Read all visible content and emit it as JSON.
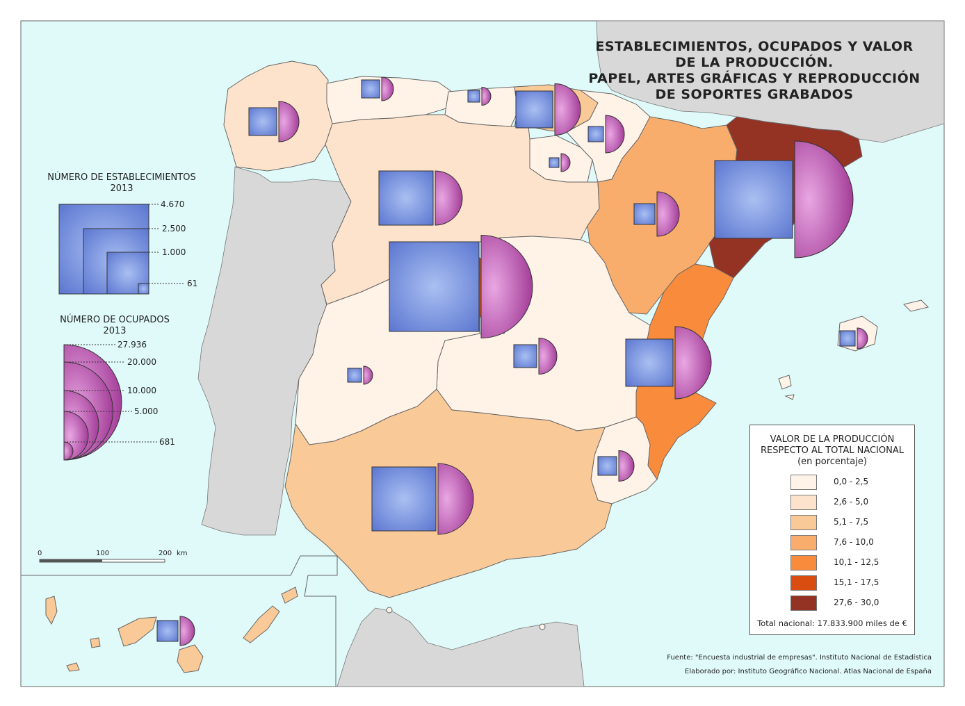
{
  "title": {
    "line1": "ESTABLECIMIENTOS, OCUPADOS Y VALOR",
    "line2": "DE LA PRODUCCIÓN.",
    "line3": "PAPEL, ARTES GRÁFICAS Y REPRODUCCIÓN",
    "line4": "DE SOPORTES GRABADOS"
  },
  "legend_establecimientos": {
    "heading1": "NÚMERO DE ESTABLECIMIENTOS",
    "heading2": "2013",
    "values": [
      "4.670",
      "2.500",
      "1.000",
      "61"
    ]
  },
  "legend_ocupados": {
    "heading1": "NÚMERO DE OCUPADOS",
    "heading2": "2013",
    "values": [
      "27.936",
      "20.000",
      "10.000",
      "5.000",
      "681"
    ]
  },
  "legend_valor": {
    "heading1": "VALOR DE LA PRODUCCIÓN",
    "heading2": "RESPECTO AL TOTAL NACIONAL",
    "heading3": "(en porcentaje)",
    "classes": [
      {
        "label": "0,0 - 2,5",
        "color": "#fff3e8"
      },
      {
        "label": "2,6 - 5,0",
        "color": "#fde3cb"
      },
      {
        "label": "5,1 - 7,5",
        "color": "#fac998"
      },
      {
        "label": "7,6 - 10,0",
        "color": "#f9ad6c"
      },
      {
        "label": "10,1 - 12,5",
        "color": "#f98c3c"
      },
      {
        "label": "15,1 - 17,5",
        "color": "#d94e10"
      },
      {
        "label": "27,6 - 30,0",
        "color": "#943224"
      }
    ],
    "total": "Total nacional: 17.833.900 miles de €"
  },
  "scale": {
    "ticks": [
      "0",
      "100",
      "200"
    ],
    "unit": "km"
  },
  "footer": {
    "source": "Fuente: \"Encuesta industrial de empresas\". Instituto Nacional de Estadística",
    "author": "Elaborado por: Instituto Geográfico Nacional. Atlas Nacional de España"
  },
  "colors": {
    "sea": "#e0fafa",
    "foreign_land": "#d8d8d8",
    "square": "#6f88d8",
    "semicircle": "#b04aa8"
  }
}
